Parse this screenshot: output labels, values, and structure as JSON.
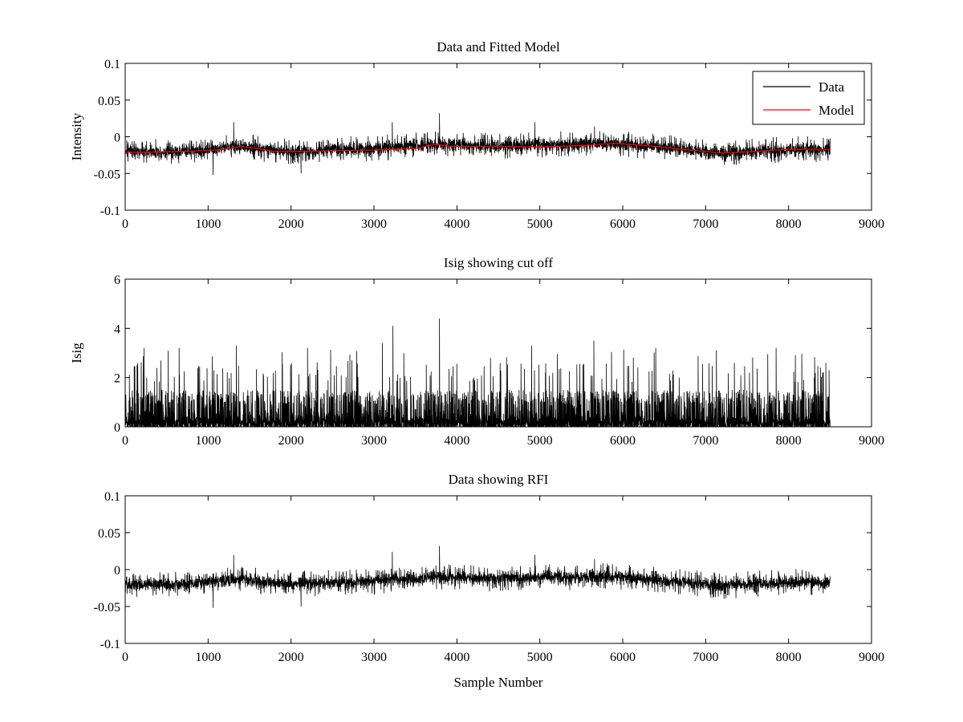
{
  "chart_data": [
    {
      "type": "line",
      "title": "Data and Fitted Model",
      "xlabel": "",
      "ylabel": "Intensity",
      "xlim": [
        0,
        9000
      ],
      "ylim": [
        -0.1,
        0.1
      ],
      "x_ticks": [
        0,
        1000,
        2000,
        3000,
        4000,
        5000,
        6000,
        7000,
        8000,
        9000
      ],
      "x_tick_labels": [
        "0",
        "1000",
        "2000",
        "3000",
        "4000",
        "5000",
        "6000",
        "7000",
        "8000",
        "9000"
      ],
      "y_ticks": [
        -0.1,
        -0.05,
        0,
        0.05,
        0.1
      ],
      "y_tick_labels": [
        "-0.1",
        "-0.05",
        "0",
        "0.05",
        "0.1"
      ],
      "legend": {
        "placement": "top-right",
        "entries": [
          {
            "label": "Data",
            "color": "#000000"
          },
          {
            "label": "Model",
            "color": "#ff0000"
          }
        ]
      },
      "series": [
        {
          "name": "Data",
          "color": "#000000",
          "kind": "noise",
          "n_samples": 8500,
          "baseline": [
            [
              0,
              -0.02
            ],
            [
              700,
              -0.02
            ],
            [
              1400,
              -0.013
            ],
            [
              2000,
              -0.02
            ],
            [
              3000,
              -0.016
            ],
            [
              3750,
              -0.01
            ],
            [
              4500,
              -0.012
            ],
            [
              5900,
              -0.009
            ],
            [
              7200,
              -0.022
            ],
            [
              8000,
              -0.017
            ],
            [
              8500,
              -0.017
            ]
          ],
          "noise_amplitude": 0.012,
          "spikes": [
            [
              1310,
              0.02
            ],
            [
              3220,
              0.02
            ],
            [
              3790,
              0.032
            ],
            [
              4940,
              0.02
            ],
            [
              5660,
              0.014
            ],
            [
              1060,
              -0.052
            ],
            [
              2120,
              -0.05
            ]
          ]
        },
        {
          "name": "Model",
          "color": "#ff0000",
          "kind": "line",
          "points": [
            [
              0,
              -0.021
            ],
            [
              300,
              -0.021
            ],
            [
              700,
              -0.02
            ],
            [
              1100,
              -0.018
            ],
            [
              1400,
              -0.013
            ],
            [
              1600,
              -0.016
            ],
            [
              1800,
              -0.02
            ],
            [
              2100,
              -0.02
            ],
            [
              2500,
              -0.019
            ],
            [
              3000,
              -0.018
            ],
            [
              3500,
              -0.016
            ],
            [
              3750,
              -0.01
            ],
            [
              3900,
              -0.013
            ],
            [
              4500,
              -0.013
            ],
            [
              5000,
              -0.014
            ],
            [
              5500,
              -0.012
            ],
            [
              5900,
              -0.009
            ],
            [
              6300,
              -0.012
            ],
            [
              6800,
              -0.018
            ],
            [
              7200,
              -0.022
            ],
            [
              7600,
              -0.02
            ],
            [
              8000,
              -0.017
            ],
            [
              8500,
              -0.017
            ]
          ]
        }
      ]
    },
    {
      "type": "line",
      "title": "Isig showing cut off",
      "xlabel": "",
      "ylabel": "Isig",
      "xlim": [
        0,
        9000
      ],
      "ylim": [
        0,
        6
      ],
      "x_ticks": [
        0,
        1000,
        2000,
        3000,
        4000,
        5000,
        6000,
        7000,
        8000,
        9000
      ],
      "x_tick_labels": [
        "0",
        "1000",
        "2000",
        "3000",
        "4000",
        "5000",
        "6000",
        "7000",
        "8000",
        "9000"
      ],
      "y_ticks": [
        0,
        2,
        4,
        6
      ],
      "y_tick_labels": [
        "0",
        "2",
        "4",
        "6"
      ],
      "series": [
        {
          "name": "Isig",
          "color": "#000000",
          "kind": "abs-noise",
          "n_samples": 8500,
          "typical_max": 2.0,
          "spikes": [
            [
              230,
              3.2
            ],
            [
              650,
              3.2
            ],
            [
              1340,
              3.3
            ],
            [
              2200,
              3.2
            ],
            [
              3100,
              3.4
            ],
            [
              3230,
              4.1
            ],
            [
              3790,
              4.4
            ],
            [
              4900,
              3.3
            ],
            [
              5650,
              3.5
            ],
            [
              6400,
              3.2
            ],
            [
              7850,
              3.2
            ],
            [
              8450,
              2.6
            ]
          ]
        }
      ]
    },
    {
      "type": "line",
      "title": "Data showing RFI",
      "xlabel": "Sample Number",
      "ylabel": "",
      "xlim": [
        0,
        9000
      ],
      "ylim": [
        -0.1,
        0.1
      ],
      "x_ticks": [
        0,
        1000,
        2000,
        3000,
        4000,
        5000,
        6000,
        7000,
        8000,
        9000
      ],
      "x_tick_labels": [
        "0",
        "1000",
        "2000",
        "3000",
        "4000",
        "5000",
        "6000",
        "7000",
        "8000",
        "9000"
      ],
      "y_ticks": [
        -0.1,
        -0.05,
        0,
        0.05,
        0.1
      ],
      "y_tick_labels": [
        "-0.1",
        "-0.05",
        "0",
        "0.05",
        "0.1"
      ],
      "series": [
        {
          "name": "Data",
          "color": "#000000",
          "kind": "noise",
          "n_samples": 8500,
          "baseline": [
            [
              0,
              -0.02
            ],
            [
              700,
              -0.02
            ],
            [
              1400,
              -0.013
            ],
            [
              2000,
              -0.02
            ],
            [
              3000,
              -0.016
            ],
            [
              3750,
              -0.01
            ],
            [
              4500,
              -0.012
            ],
            [
              5900,
              -0.009
            ],
            [
              7200,
              -0.022
            ],
            [
              8000,
              -0.017
            ],
            [
              8500,
              -0.017
            ]
          ],
          "noise_amplitude": 0.012,
          "spikes": [
            [
              1310,
              0.02
            ],
            [
              3220,
              0.024
            ],
            [
              3790,
              0.032
            ],
            [
              4940,
              0.02
            ],
            [
              5660,
              0.014
            ],
            [
              1060,
              -0.052
            ],
            [
              2120,
              -0.05
            ]
          ]
        }
      ]
    }
  ]
}
